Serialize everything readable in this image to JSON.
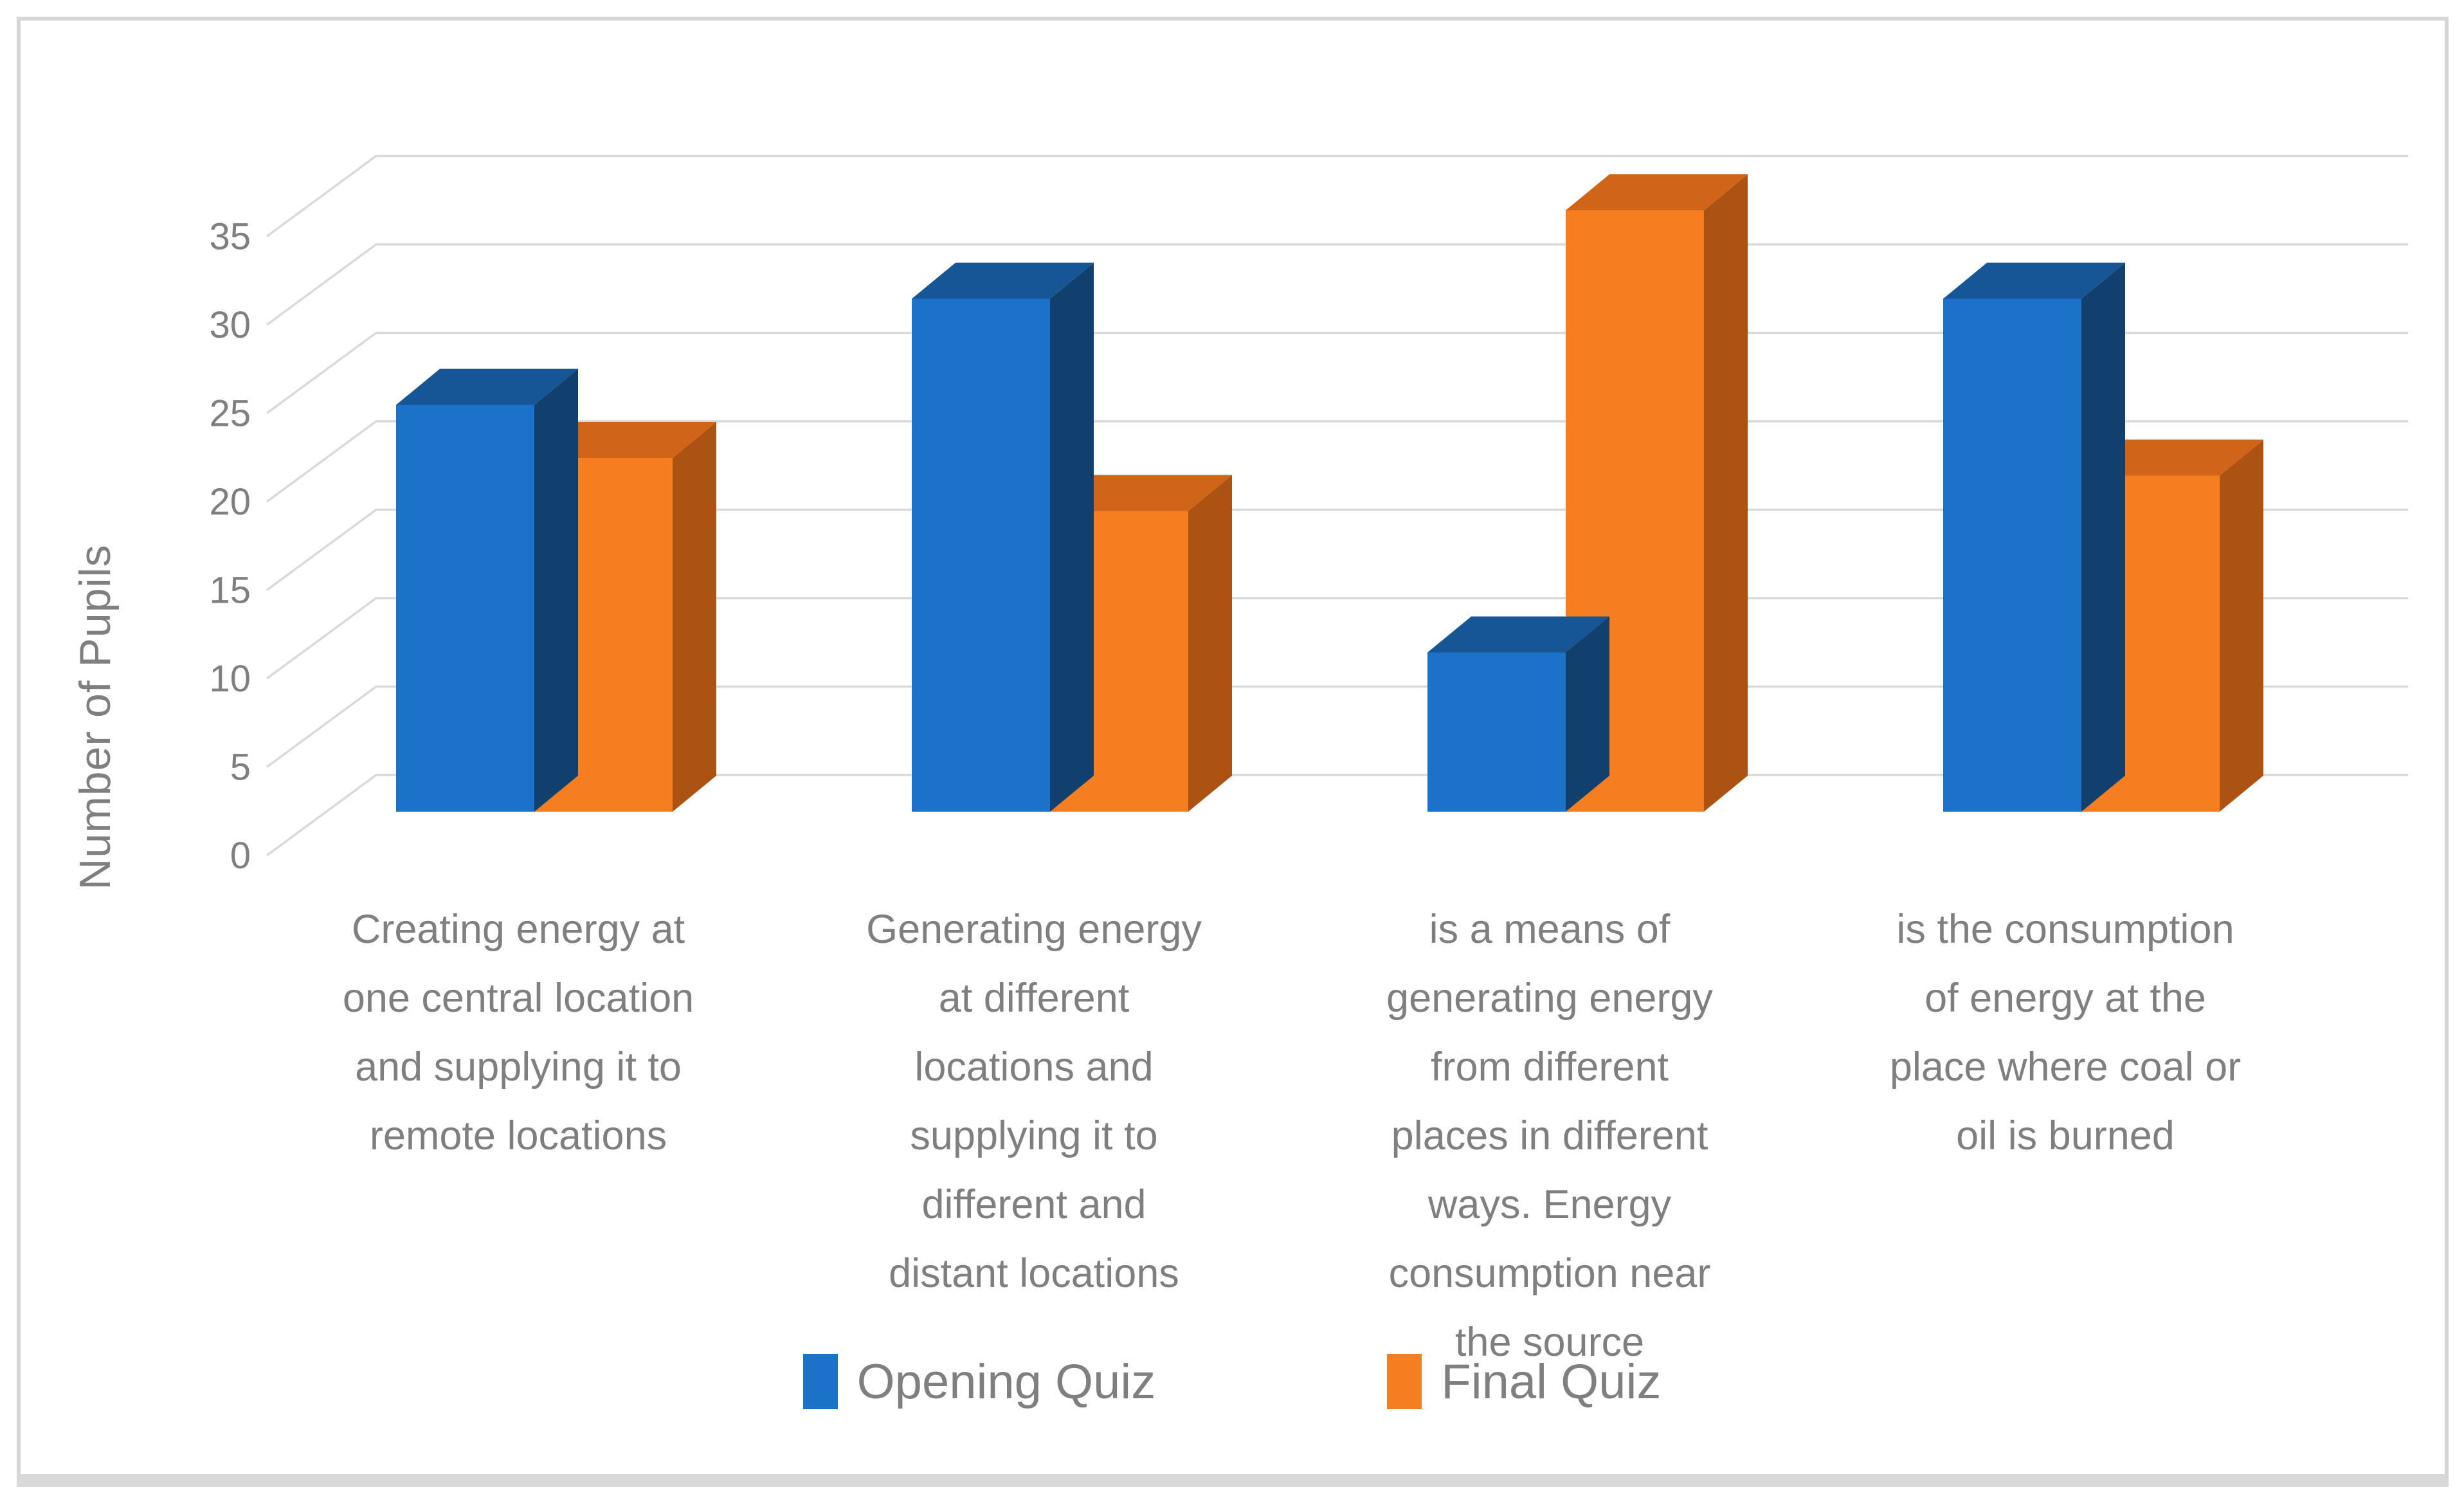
{
  "figure": {
    "background": "#ffffff",
    "frame_border_color": "#d9d9d9",
    "text_color": "#7f7f7f",
    "gridline_color": "#d9d9d9"
  },
  "chart_data": {
    "type": "bar",
    "subtype": "3d-clustered-column",
    "title": "",
    "xlabel": "",
    "ylabel": "Number of Pupils",
    "ylim": [
      0,
      35
    ],
    "yticks": [
      0,
      5,
      10,
      15,
      20,
      25,
      30,
      35
    ],
    "grid": true,
    "legend_position": "bottom",
    "categories": [
      "Creating energy at one central location and supplying it to remote locations",
      "Generating energy at different locations and supplying it to different and distant locations",
      "is a means of generating energy from different places in different ways. Energy consumption near the source",
      "is the consumption of energy at the place where coal or oil is burned"
    ],
    "category_lines": [
      [
        "Creating energy at",
        "one central location",
        "and supplying it to",
        "remote locations"
      ],
      [
        "Generating energy",
        "at different",
        "locations and",
        "supplying it to",
        "different and",
        "distant locations"
      ],
      [
        "is a means of",
        "generating energy",
        "from different",
        "places in different",
        "ways. Energy",
        "consumption near",
        "the source"
      ],
      [
        "is the consumption",
        "of energy at the",
        "place where coal or",
        "oil is burned"
      ]
    ],
    "series": [
      {
        "name": "Opening Quiz",
        "values": [
          23,
          29,
          9,
          29
        ],
        "colors": {
          "front": "#1B72C8",
          "top": "#175694",
          "side": "#11406F"
        }
      },
      {
        "name": "Final Quiz",
        "values": [
          20,
          17,
          34,
          19
        ],
        "colors": {
          "front": "#F57E21",
          "top": "#D06419",
          "side": "#AC5313"
        }
      }
    ]
  }
}
